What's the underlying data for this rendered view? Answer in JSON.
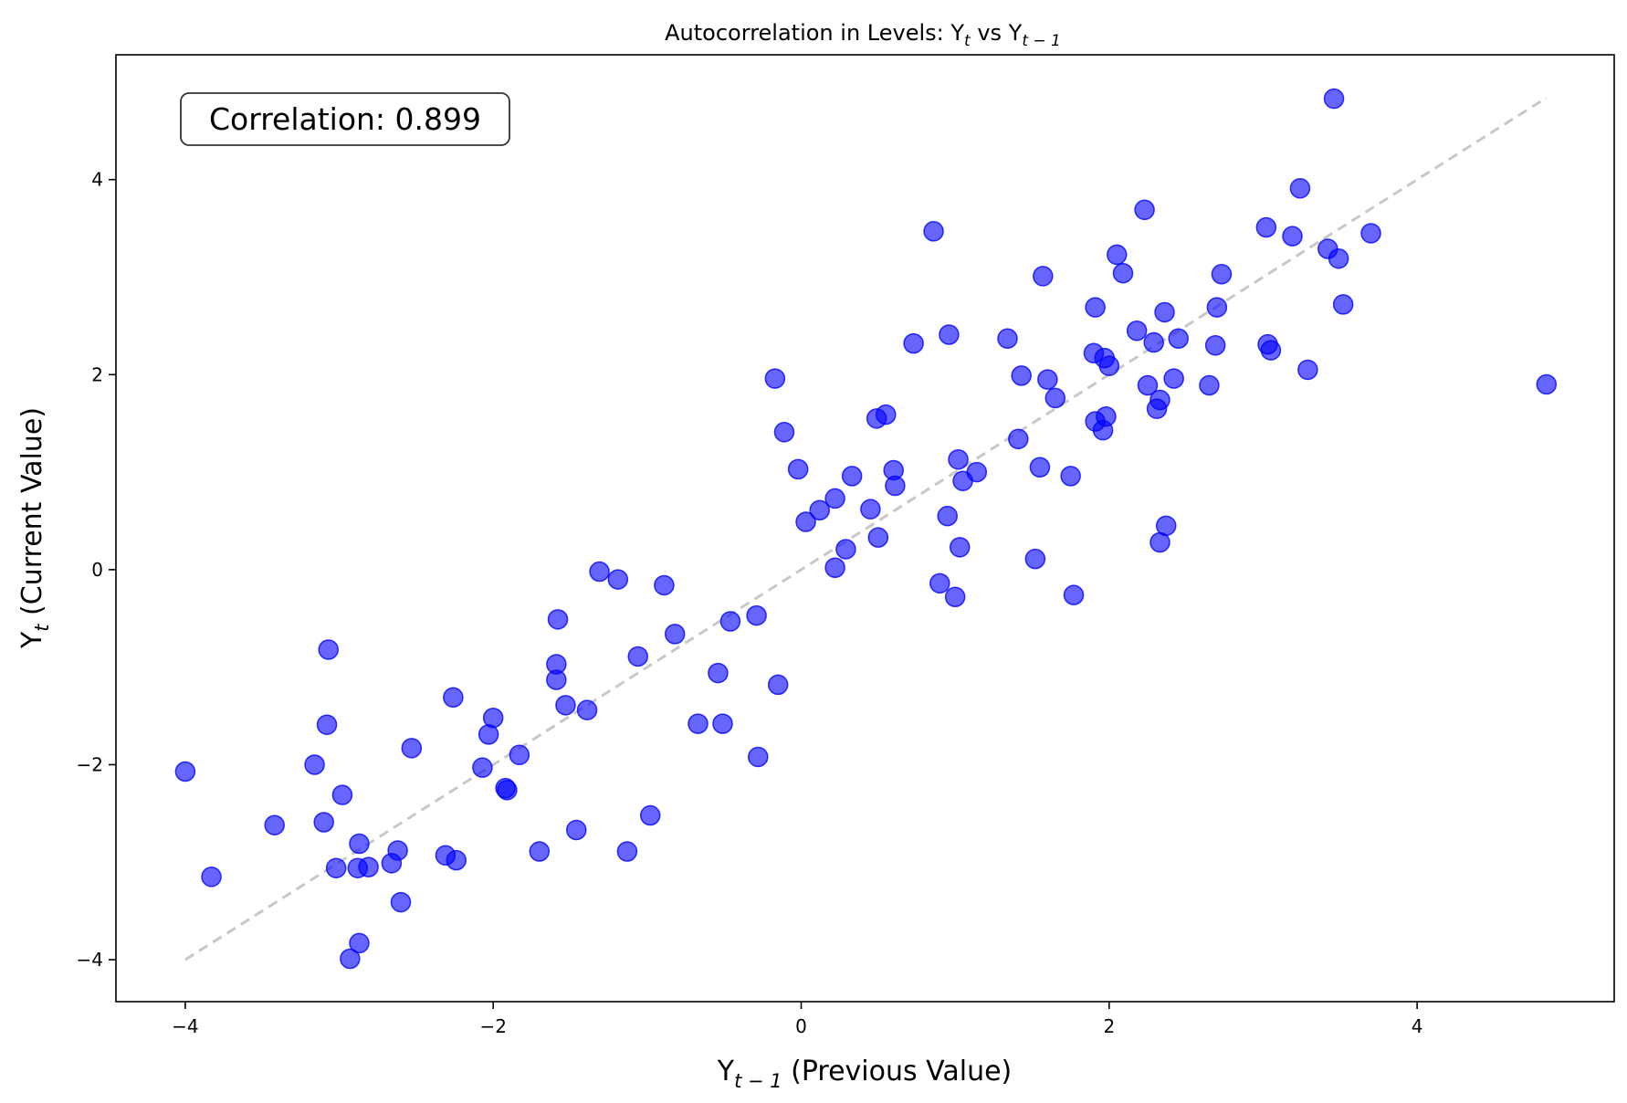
{
  "chart_data": {
    "type": "scatter",
    "title": "Autocorrelation in Levels: Y_t vs Y_{t-1}",
    "title_parts": {
      "a": "Autocorrelation in Levels: Y",
      "b": "t",
      "c": " vs Y",
      "d": "t − 1"
    },
    "xlabel_parts": {
      "a": "Y",
      "b": "t − 1",
      "c": " (Previous Value)"
    },
    "ylabel_parts": {
      "a": "Y",
      "b": "t",
      "c": " (Current Value)"
    },
    "annotation": "Correlation: 0.899",
    "xlim": [
      -4.45,
      5.28
    ],
    "ylim": [
      -4.43,
      5.28
    ],
    "xticks": [
      -4,
      -2,
      0,
      2,
      4
    ],
    "yticks": [
      -4,
      -2,
      0,
      2,
      4
    ],
    "xtick_labels": [
      "−4",
      "−2",
      "0",
      "2",
      "4"
    ],
    "ytick_labels": [
      "−4",
      "−2",
      "0",
      "2",
      "4"
    ],
    "grid": false,
    "point_color": "#0000ff",
    "point_opacity": 0.6,
    "reference_line": {
      "x": [
        -4.0,
        4.84
      ],
      "y": [
        -4.0,
        4.84
      ],
      "color": "#c8c8c8",
      "style": "dashed"
    },
    "points": [
      [
        -4.0,
        -2.07
      ],
      [
        -3.83,
        -3.15
      ],
      [
        -3.42,
        -2.62
      ],
      [
        -3.16,
        -2.0
      ],
      [
        -3.07,
        -0.82
      ],
      [
        -3.08,
        -1.59
      ],
      [
        -3.1,
        -2.59
      ],
      [
        -3.02,
        -3.06
      ],
      [
        -2.98,
        -2.31
      ],
      [
        -2.93,
        -3.99
      ],
      [
        -2.88,
        -3.06
      ],
      [
        -2.87,
        -2.81
      ],
      [
        -2.87,
        -3.83
      ],
      [
        -2.81,
        -3.05
      ],
      [
        -2.66,
        -3.01
      ],
      [
        -2.62,
        -2.88
      ],
      [
        -2.6,
        -3.41
      ],
      [
        -2.53,
        -1.83
      ],
      [
        -2.31,
        -2.93
      ],
      [
        -2.26,
        -1.31
      ],
      [
        -2.24,
        -2.98
      ],
      [
        -2.07,
        -2.03
      ],
      [
        -2.03,
        -1.69
      ],
      [
        -2.0,
        -1.52
      ],
      [
        -1.92,
        -2.24
      ],
      [
        -1.91,
        -2.26
      ],
      [
        -1.83,
        -1.9
      ],
      [
        -1.7,
        -2.89
      ],
      [
        -1.59,
        -0.97
      ],
      [
        -1.59,
        -1.13
      ],
      [
        -1.58,
        -0.51
      ],
      [
        -1.53,
        -1.39
      ],
      [
        -1.46,
        -2.67
      ],
      [
        -1.39,
        -1.44
      ],
      [
        -1.31,
        -0.02
      ],
      [
        -1.19,
        -0.1
      ],
      [
        -1.13,
        -2.89
      ],
      [
        -1.06,
        -0.89
      ],
      [
        -0.98,
        -2.52
      ],
      [
        -0.89,
        -0.16
      ],
      [
        -0.82,
        -0.66
      ],
      [
        -0.67,
        -1.58
      ],
      [
        -0.54,
        -1.06
      ],
      [
        -0.51,
        -1.58
      ],
      [
        -0.46,
        -0.53
      ],
      [
        -0.29,
        -0.47
      ],
      [
        -0.28,
        -1.92
      ],
      [
        -0.17,
        1.96
      ],
      [
        -0.15,
        -1.18
      ],
      [
        -0.11,
        1.41
      ],
      [
        -0.02,
        1.03
      ],
      [
        0.03,
        0.49
      ],
      [
        0.12,
        0.61
      ],
      [
        0.22,
        0.73
      ],
      [
        0.22,
        0.02
      ],
      [
        0.29,
        0.21
      ],
      [
        0.33,
        0.96
      ],
      [
        0.45,
        0.62
      ],
      [
        0.49,
        1.55
      ],
      [
        0.5,
        0.33
      ],
      [
        0.55,
        1.59
      ],
      [
        0.6,
        1.02
      ],
      [
        0.61,
        0.86
      ],
      [
        0.73,
        2.32
      ],
      [
        0.86,
        3.47
      ],
      [
        0.9,
        -0.14
      ],
      [
        0.95,
        0.55
      ],
      [
        0.96,
        2.41
      ],
      [
        1.0,
        -0.28
      ],
      [
        1.02,
        1.13
      ],
      [
        1.03,
        0.23
      ],
      [
        1.05,
        0.91
      ],
      [
        1.14,
        1.0
      ],
      [
        1.34,
        2.37
      ],
      [
        1.41,
        1.34
      ],
      [
        1.43,
        1.99
      ],
      [
        1.52,
        0.11
      ],
      [
        1.55,
        1.05
      ],
      [
        1.57,
        3.01
      ],
      [
        1.6,
        1.95
      ],
      [
        1.65,
        1.76
      ],
      [
        1.75,
        0.96
      ],
      [
        1.77,
        -0.26
      ],
      [
        1.9,
        2.22
      ],
      [
        1.91,
        2.69
      ],
      [
        1.91,
        1.52
      ],
      [
        1.96,
        1.43
      ],
      [
        1.97,
        2.17
      ],
      [
        1.98,
        1.57
      ],
      [
        2.0,
        2.09
      ],
      [
        2.05,
        3.23
      ],
      [
        2.09,
        3.04
      ],
      [
        2.18,
        2.45
      ],
      [
        2.23,
        3.69
      ],
      [
        2.25,
        1.89
      ],
      [
        2.29,
        2.33
      ],
      [
        2.31,
        1.65
      ],
      [
        2.33,
        1.74
      ],
      [
        2.33,
        0.28
      ],
      [
        2.36,
        2.64
      ],
      [
        2.37,
        0.45
      ],
      [
        2.42,
        1.96
      ],
      [
        2.45,
        2.37
      ],
      [
        2.65,
        1.89
      ],
      [
        2.69,
        2.3
      ],
      [
        2.7,
        2.69
      ],
      [
        2.73,
        3.03
      ],
      [
        3.02,
        3.51
      ],
      [
        3.03,
        2.31
      ],
      [
        3.05,
        2.25
      ],
      [
        3.19,
        3.42
      ],
      [
        3.24,
        3.91
      ],
      [
        3.29,
        2.05
      ],
      [
        3.42,
        3.29
      ],
      [
        3.46,
        4.83
      ],
      [
        3.49,
        3.19
      ],
      [
        3.52,
        2.72
      ],
      [
        3.7,
        3.45
      ],
      [
        4.84,
        1.9
      ]
    ]
  }
}
